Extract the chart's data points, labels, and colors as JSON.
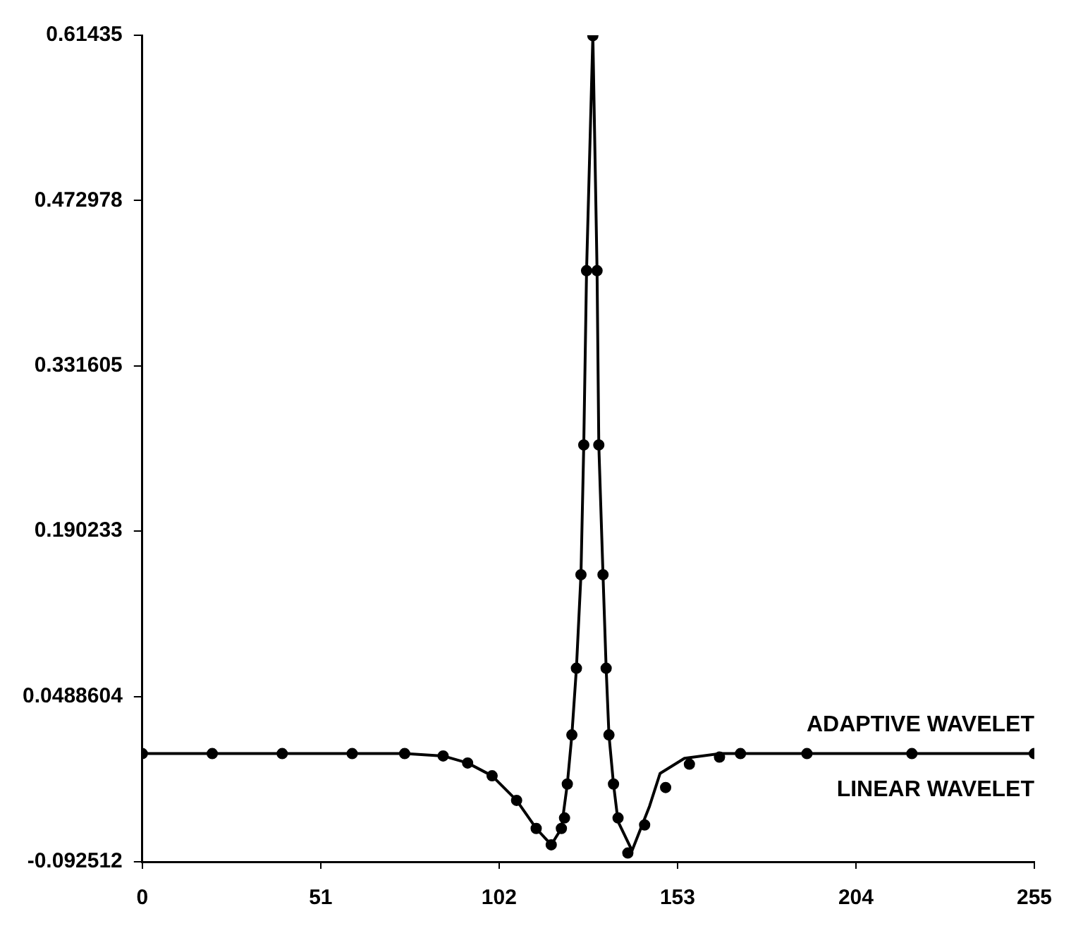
{
  "chart_data": {
    "type": "line",
    "xlim": [
      0,
      255
    ],
    "xticks": [
      0,
      51,
      102,
      153,
      204,
      255
    ],
    "ylim": [
      -0.092512,
      0.61435
    ],
    "yticks": [
      -0.092512,
      0.0488604,
      0.190233,
      0.331605,
      0.472978,
      0.61435
    ],
    "grid": false,
    "legend": false,
    "series": [
      {
        "name": "ADAPTIVE WAVELET",
        "type": "scatter",
        "color": "#000000",
        "marker": "circle",
        "x": [
          0,
          20,
          40,
          60,
          75,
          86,
          93,
          100,
          107,
          112.6,
          116.9,
          119.8,
          120.7,
          121.5,
          122.8,
          124.1,
          125.4,
          126.2,
          127,
          128.8,
          130,
          130.5,
          131.7,
          132.6,
          133.4,
          134.7,
          136,
          138.8,
          143.6,
          149.6,
          156.4,
          165,
          171,
          190,
          220,
          255
        ],
        "values": [
          0,
          0,
          0,
          0,
          0,
          -0.002,
          -0.008,
          -0.019,
          -0.04,
          -0.064,
          -0.078,
          -0.064,
          -0.055,
          -0.026,
          0.016,
          0.073,
          0.153,
          0.264,
          0.413,
          0.614,
          0.413,
          0.264,
          0.153,
          0.073,
          0.016,
          -0.026,
          -0.055,
          -0.085,
          -0.061,
          -0.029,
          -0.009,
          -0.003,
          0,
          0,
          0,
          0
        ]
      },
      {
        "name": "LINEAR WAVELET",
        "color": "#000000",
        "marker": "none",
        "x": [
          0,
          40,
          75,
          86,
          93,
          100,
          107,
          112.6,
          116.9,
          119.8,
          121.5,
          122.8,
          124.1,
          125.4,
          126.2,
          127,
          128.8,
          130,
          130.5,
          131.7,
          132.6,
          133.4,
          134.7,
          136,
          140,
          145,
          148,
          155,
          165,
          200,
          255
        ],
        "values": [
          0,
          0,
          0,
          -0.002,
          -0.008,
          -0.019,
          -0.04,
          -0.064,
          -0.078,
          -0.064,
          -0.026,
          0.016,
          0.073,
          0.153,
          0.264,
          0.413,
          0.614,
          0.413,
          0.264,
          0.153,
          0.073,
          0.016,
          -0.026,
          -0.058,
          -0.083,
          -0.045,
          -0.017,
          -0.004,
          0,
          0,
          0
        ]
      }
    ]
  }
}
